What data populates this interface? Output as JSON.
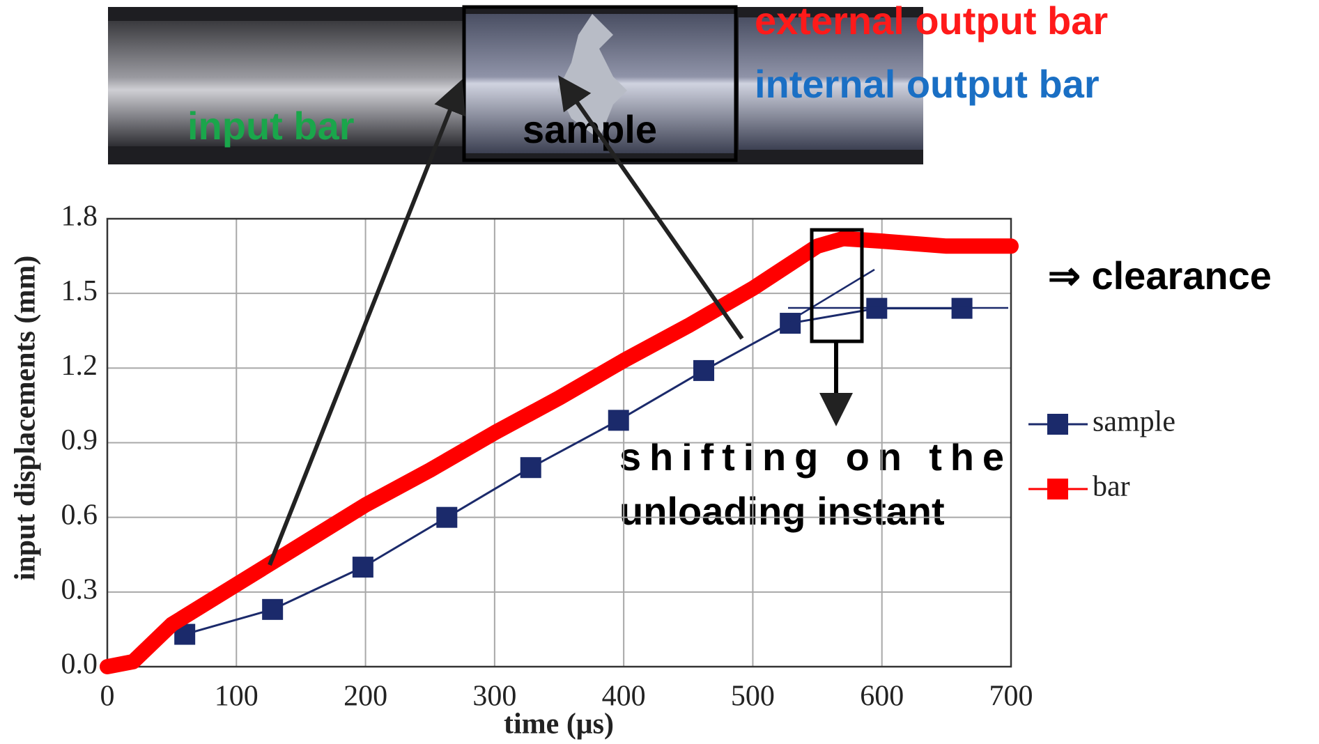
{
  "chart_data": {
    "type": "line",
    "xlabel": "time (μs)",
    "ylabel": "input displacements (mm)",
    "xlim": [
      0,
      700
    ],
    "ylim": [
      0,
      1.8
    ],
    "xticks": [
      0,
      100,
      200,
      300,
      400,
      500,
      600,
      700
    ],
    "yticks": [
      {
        "value": 0,
        "label": "0.0"
      },
      0.3,
      0.6,
      0.9,
      1.2,
      1.5,
      1.8
    ],
    "grid": true,
    "legend": "right",
    "series": [
      {
        "name": "sample",
        "color": "#1b2a6b",
        "marker": "square",
        "x": [
          60,
          128,
          198,
          263,
          328,
          396,
          462,
          529,
          596,
          662
        ],
        "values": [
          0.13,
          0.23,
          0.4,
          0.6,
          0.8,
          0.99,
          1.19,
          1.38,
          1.44,
          1.44
        ]
      },
      {
        "name": "bar",
        "color": "#ff0000",
        "marker": "none",
        "x": [
          0,
          20,
          50,
          100,
          150,
          200,
          250,
          300,
          350,
          400,
          450,
          500,
          550,
          570,
          600,
          650,
          700
        ],
        "values": [
          0,
          0.02,
          0.17,
          0.33,
          0.49,
          0.65,
          0.79,
          0.94,
          1.08,
          1.23,
          1.37,
          1.52,
          1.69,
          1.72,
          1.71,
          1.69,
          1.69
        ]
      }
    ],
    "annotations": {
      "external": "external output bar",
      "internal": "internal output bar",
      "input": "input bar",
      "sample": "sample",
      "clearance": "⇒ clearance",
      "shift1": "shifting on the",
      "shift2": "unloading instant"
    }
  }
}
